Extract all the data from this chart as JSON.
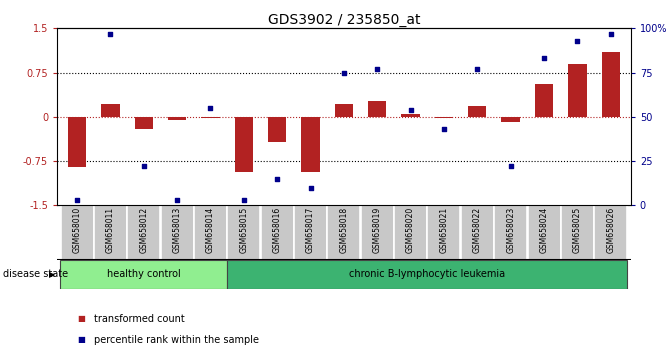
{
  "title": "GDS3902 / 235850_at",
  "samples": [
    "GSM658010",
    "GSM658011",
    "GSM658012",
    "GSM658013",
    "GSM658014",
    "GSM658015",
    "GSM658016",
    "GSM658017",
    "GSM658018",
    "GSM658019",
    "GSM658020",
    "GSM658021",
    "GSM658022",
    "GSM658023",
    "GSM658024",
    "GSM658025",
    "GSM658026"
  ],
  "bar_values": [
    -0.85,
    0.22,
    -0.2,
    -0.05,
    -0.02,
    -0.93,
    -0.42,
    -0.93,
    0.22,
    0.27,
    0.05,
    -0.02,
    0.18,
    -0.08,
    0.55,
    0.9,
    1.1
  ],
  "percentile_values": [
    3,
    97,
    22,
    3,
    55,
    3,
    15,
    10,
    75,
    77,
    54,
    43,
    77,
    22,
    83,
    93,
    97
  ],
  "bar_color": "#b22222",
  "dot_color": "#00008b",
  "ylim_left": [
    -1.5,
    1.5
  ],
  "ylim_right": [
    0,
    100
  ],
  "yticks_left": [
    -1.5,
    -0.75,
    0,
    0.75,
    1.5
  ],
  "ytick_labels_left": [
    "-1.5",
    "-0.75",
    "0",
    "0.75",
    "1.5"
  ],
  "yticks_right": [
    0,
    25,
    50,
    75,
    100
  ],
  "ytick_labels_right": [
    "0",
    "25",
    "50",
    "75",
    "100%"
  ],
  "hline_dotted": [
    0.75,
    -0.75
  ],
  "hline_red": 0,
  "healthy_count": 5,
  "group1_label": "healthy control",
  "group2_label": "chronic B-lymphocytic leukemia",
  "disease_state_label": "disease state",
  "legend_bar_label": "transformed count",
  "legend_dot_label": "percentile rank within the sample",
  "healthy_color": "#90EE90",
  "leukemia_color": "#3CB371",
  "xtick_bg": "#c8c8c8",
  "title_fontsize": 10,
  "tick_fontsize": 7,
  "xtick_fontsize": 5.5
}
